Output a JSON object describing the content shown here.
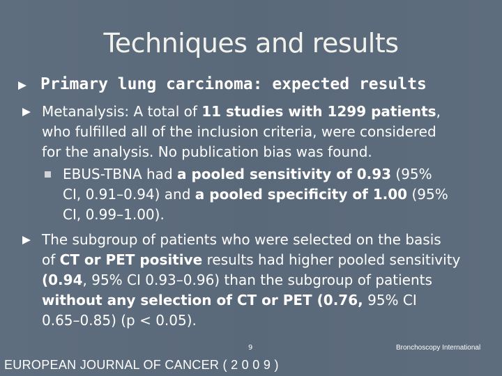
{
  "slide": {
    "title": "Techniques and results",
    "heading": "Primary lung carcinoma: expected results",
    "b1": {
      "l1a": "Metanalysis: A total of ",
      "l1b": "11 studies with 1299 patients",
      "l1c": ",",
      "l2": "who fulfilled all of the inclusion criteria, were considered",
      "l3": "for the analysis. No publication bias was found."
    },
    "sub1": {
      "l1a": "EBUS-TBNA had ",
      "l1b": "a pooled sensitivity of 0.93",
      "l1c": " (95%",
      "l2a": "CI, 0.91–0.94) and ",
      "l2b": "a pooled specificity of 1.00",
      "l2c": " (95%",
      "l3": "CI, 0.99–1.00)."
    },
    "b2": {
      "l1": "The subgroup of patients who were selected on the basis",
      "l2a": "of ",
      "l2b": "CT or PET positive",
      "l2c": " results had higher pooled sensitivity",
      "l3a": "(0.94",
      "l3b": ", 95% CI 0.93–0.96) than the subgroup of patients",
      "l4a": "without any selection of CT or PET (0.76,",
      "l4b": " 95% CI",
      "l5": "0.65–0.85) (p < 0.05)."
    },
    "page_number": "9",
    "brand": "Bronchoscopy International",
    "journal": "EUROPEAN JOURNAL OF CANCER ( 2 0 0 9 )"
  },
  "colors": {
    "background": "#5a6979",
    "text": "#ffffff"
  },
  "icons": [
    "arrow-bullet-icon",
    "square-bullet-icon"
  ]
}
